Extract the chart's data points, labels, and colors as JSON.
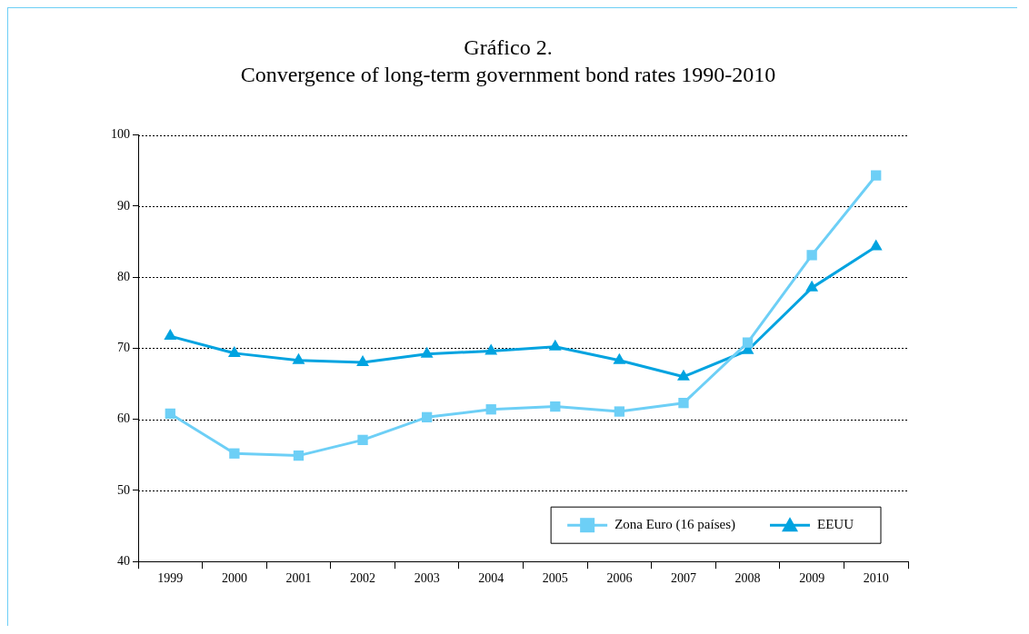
{
  "chart_data": {
    "type": "line",
    "title": "Gráfico 2.",
    "subtitle": "Convergence of long-term government bond rates 1990-2010",
    "categories": [
      "1999",
      "2000",
      "2001",
      "2002",
      "2003",
      "2004",
      "2005",
      "2006",
      "2007",
      "2008",
      "2009",
      "2010"
    ],
    "series": [
      {
        "name": "Zona Euro (16 países)",
        "color": "#6dcff6",
        "marker": "square",
        "values": [
          60.8,
          55.2,
          54.9,
          57.1,
          60.3,
          61.4,
          61.8,
          61.1,
          62.3,
          70.8,
          83.1,
          94.3
        ]
      },
      {
        "name": "EEUU",
        "color": "#00a3e0",
        "marker": "triangle",
        "values": [
          71.7,
          69.3,
          68.3,
          68.0,
          69.2,
          69.6,
          70.2,
          68.3,
          66.0,
          69.7,
          78.5,
          84.3
        ]
      }
    ],
    "ylim": [
      40,
      100
    ],
    "yticks": [
      40,
      50,
      60,
      70,
      80,
      90,
      100
    ],
    "grid": "y",
    "legend": "bottom right",
    "line_style": "solid"
  }
}
